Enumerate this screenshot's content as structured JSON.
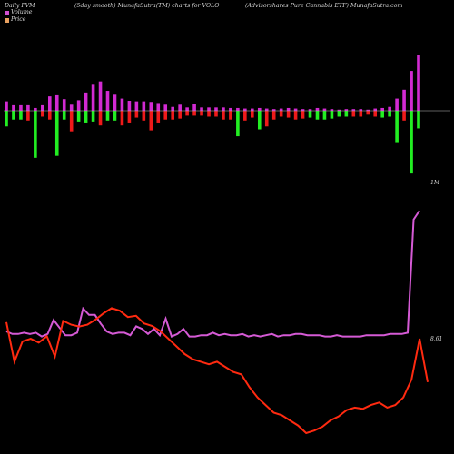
{
  "header": {
    "left": "Daily PVM",
    "middle": "(5day smooth) MunafaSutra(TM) charts for VOLO",
    "right": "(Advisorshares Pure   Cannabis ETF) MunafaSutra.com"
  },
  "legend": {
    "volume_label": "Volume",
    "price_label": "Price",
    "volume_color": "#d14fd1",
    "price_color": "#e8a060"
  },
  "chart_data": {
    "type": "line",
    "title": "",
    "xlabel": "",
    "ylabel": "",
    "volume_end_label": "1M",
    "price_end_label": "8.61",
    "colors": {
      "volume_line": "#d55ad5",
      "price_line": "#ff2a10",
      "bar_up": "#d22ad2",
      "bar_down_green": "#22ee22",
      "bar_down_red": "#ee1a1a",
      "zero_line": "#bbbbbb"
    },
    "volume_line": [
      0.05,
      0.03,
      0.03,
      0.04,
      0.03,
      0.04,
      0.01,
      0.03,
      0.14,
      0.08,
      0.02,
      0.02,
      0.04,
      0.23,
      0.18,
      0.18,
      0.11,
      0.05,
      0.03,
      0.04,
      0.04,
      0.02,
      0.09,
      0.07,
      0.03,
      0.07,
      0.02,
      0.15,
      0.01,
      0.03,
      0.07,
      0.01,
      0.01,
      0.02,
      0.02,
      0.04,
      0.02,
      0.03,
      0.02,
      0.02,
      0.03,
      0.01,
      0.02,
      0.01,
      0.02,
      0.03,
      0.01,
      0.02,
      0.02,
      0.03,
      0.03,
      0.02,
      0.02,
      0.02,
      0.01,
      0.01,
      0.02,
      0.01,
      0.01,
      0.01,
      0.01,
      0.02,
      0.02,
      0.02,
      0.02,
      0.03,
      0.03,
      0.03,
      0.04,
      0.93,
      1.0
    ],
    "price_line": [
      8.55,
      7.0,
      7.8,
      7.9,
      7.75,
      8.0,
      7.2,
      8.6,
      8.45,
      8.38,
      8.45,
      8.65,
      8.9,
      9.1,
      9.0,
      8.75,
      8.8,
      8.5,
      8.4,
      8.2,
      7.9,
      7.6,
      7.3,
      7.1,
      7.0,
      6.9,
      7.0,
      6.8,
      6.6,
      6.5,
      6.0,
      5.6,
      5.3,
      5.0,
      4.9,
      4.7,
      4.5,
      4.2,
      4.3,
      4.45,
      4.7,
      4.85,
      5.1,
      5.2,
      5.15,
      5.3,
      5.4,
      5.2,
      5.3,
      5.6,
      6.3,
      7.9,
      6.2
    ],
    "volume_bars": [
      [
        0.17,
        -0.16
      ],
      [
        0.1,
        -0.09
      ],
      [
        0.1,
        -0.09
      ],
      [
        0.1,
        -0.1
      ],
      [
        0.05,
        -0.48
      ],
      [
        0.1,
        -0.06
      ],
      [
        0.26,
        -0.09
      ],
      [
        0.28,
        -0.46
      ],
      [
        0.21,
        -0.09
      ],
      [
        0.11,
        -0.21
      ],
      [
        0.19,
        -0.11
      ],
      [
        0.33,
        -0.12
      ],
      [
        0.47,
        -0.11
      ],
      [
        0.53,
        -0.15
      ],
      [
        0.36,
        -0.1
      ],
      [
        0.29,
        -0.1
      ],
      [
        0.22,
        -0.15
      ],
      [
        0.18,
        -0.12
      ],
      [
        0.17,
        -0.07
      ],
      [
        0.17,
        -0.1
      ],
      [
        0.16,
        -0.2
      ],
      [
        0.14,
        -0.12
      ],
      [
        0.11,
        -0.09
      ],
      [
        0.07,
        -0.09
      ],
      [
        0.11,
        -0.08
      ],
      [
        0.06,
        -0.05
      ],
      [
        0.13,
        -0.05
      ],
      [
        0.06,
        -0.05
      ],
      [
        0.06,
        -0.06
      ],
      [
        0.06,
        -0.06
      ],
      [
        0.06,
        -0.09
      ],
      [
        0.05,
        -0.09
      ],
      [
        0.05,
        -0.26
      ],
      [
        0.04,
        -0.1
      ],
      [
        0.04,
        -0.07
      ],
      [
        0.05,
        -0.19
      ],
      [
        0.04,
        -0.16
      ],
      [
        0.03,
        -0.09
      ],
      [
        0.04,
        -0.06
      ],
      [
        0.05,
        -0.07
      ],
      [
        0.04,
        -0.09
      ],
      [
        0.03,
        -0.08
      ],
      [
        0.03,
        -0.07
      ],
      [
        0.05,
        -0.09
      ],
      [
        0.04,
        -0.09
      ],
      [
        0.03,
        -0.08
      ],
      [
        0.02,
        -0.06
      ],
      [
        0.03,
        -0.06
      ],
      [
        0.03,
        -0.06
      ],
      [
        0.03,
        -0.06
      ],
      [
        0.02,
        -0.04
      ],
      [
        0.04,
        -0.06
      ],
      [
        0.05,
        -0.07
      ],
      [
        0.07,
        -0.06
      ],
      [
        0.22,
        -0.32
      ],
      [
        0.38,
        -0.1
      ],
      [
        0.72,
        -0.64
      ],
      [
        1.0,
        -0.18
      ]
    ],
    "bar_down_colors": [
      "g",
      "g",
      "g",
      "r",
      "g",
      "r",
      "r",
      "g",
      "g",
      "r",
      "g",
      "g",
      "g",
      "r",
      "g",
      "g",
      "r",
      "r",
      "r",
      "r",
      "r",
      "r",
      "r",
      "r",
      "r",
      "r",
      "r",
      "r",
      "r",
      "r",
      "r",
      "r",
      "g",
      "r",
      "r",
      "g",
      "r",
      "r",
      "r",
      "r",
      "r",
      "r",
      "g",
      "g",
      "g",
      "g",
      "g",
      "g",
      "r",
      "r",
      "r",
      "r",
      "g",
      "g",
      "g",
      "r",
      "g",
      "g"
    ]
  }
}
